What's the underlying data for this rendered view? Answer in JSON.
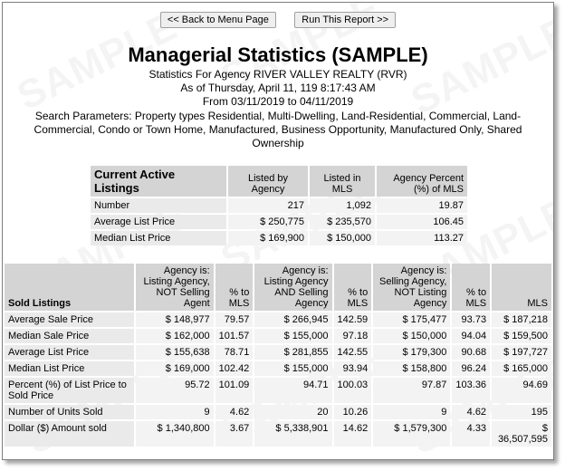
{
  "watermark": "SAMPLE",
  "buttons": {
    "back": "<< Back to Menu Page",
    "run": "Run This Report >>"
  },
  "title": "Managerial Statistics (SAMPLE)",
  "subtitle": "Statistics For Agency RIVER VALLEY REALTY (RVR)",
  "as_of": "As of Thursday, April 11, 119 8:17:43 AM",
  "range": "From 03/11/2019 to 04/11/2019",
  "params": "Search Parameters: Property types Residential, Multi-Dwelling, Land-Residential, Commercial, Land-Commercial, Condo or Town Home, Manufactured, Business Opportunity, Manufactured Only, Shared Ownership",
  "active": {
    "title": "Current Active Listings",
    "col1": "Listed by Agency",
    "col2": "Listed in MLS",
    "col3": "Agency Percent (%) of MLS",
    "rows": [
      {
        "label": "Number",
        "v1": "217",
        "v2": "1,092",
        "v3": "19.87"
      },
      {
        "label": "Average List Price",
        "v1": "$ 250,775",
        "v2": "$ 235,570",
        "v3": "106.45"
      },
      {
        "label": "Median List Price",
        "v1": "$ 169,900",
        "v2": "$ 150,000",
        "v3": "113.27"
      }
    ]
  },
  "sold": {
    "title": "Sold Listings",
    "headers": [
      "Agency is: Listing Agency, NOT Selling Agent",
      "% to MLS",
      "Agency is: Listing Agency AND Selling Agency",
      "% to MLS",
      "Agency is: Selling Agency, NOT Listing Agency",
      "% to MLS",
      "MLS"
    ],
    "rows": [
      {
        "label": "Average Sale Price",
        "c": [
          "$ 148,977",
          "79.57",
          "$ 266,945",
          "142.59",
          "$ 175,477",
          "93.73",
          "$ 187,218"
        ]
      },
      {
        "label": "Median Sale Price",
        "c": [
          "$ 162,000",
          "101.57",
          "$ 155,000",
          "97.18",
          "$ 150,000",
          "94.04",
          "$ 159,500"
        ]
      },
      {
        "label": "Average List Price",
        "c": [
          "$ 155,638",
          "78.71",
          "$ 281,855",
          "142.55",
          "$ 179,300",
          "90.68",
          "$ 197,727"
        ]
      },
      {
        "label": "Median List Price",
        "c": [
          "$ 169,000",
          "102.42",
          "$ 155,000",
          "93.94",
          "$ 158,800",
          "96.24",
          "$ 165,000"
        ]
      },
      {
        "label": "Percent (%) of List Price to Sold Price",
        "c": [
          "95.72",
          "101.09",
          "94.71",
          "100.03",
          "97.87",
          "103.36",
          "94.69"
        ]
      },
      {
        "label": "Number of Units Sold",
        "c": [
          "9",
          "4.62",
          "20",
          "10.26",
          "9",
          "4.62",
          "195"
        ]
      },
      {
        "label": "Dollar ($) Amount sold",
        "c": [
          "$ 1,340,800",
          "3.67",
          "$ 5,338,901",
          "14.62",
          "$ 1,579,300",
          "4.33",
          "$ 36,507,595"
        ]
      }
    ]
  }
}
